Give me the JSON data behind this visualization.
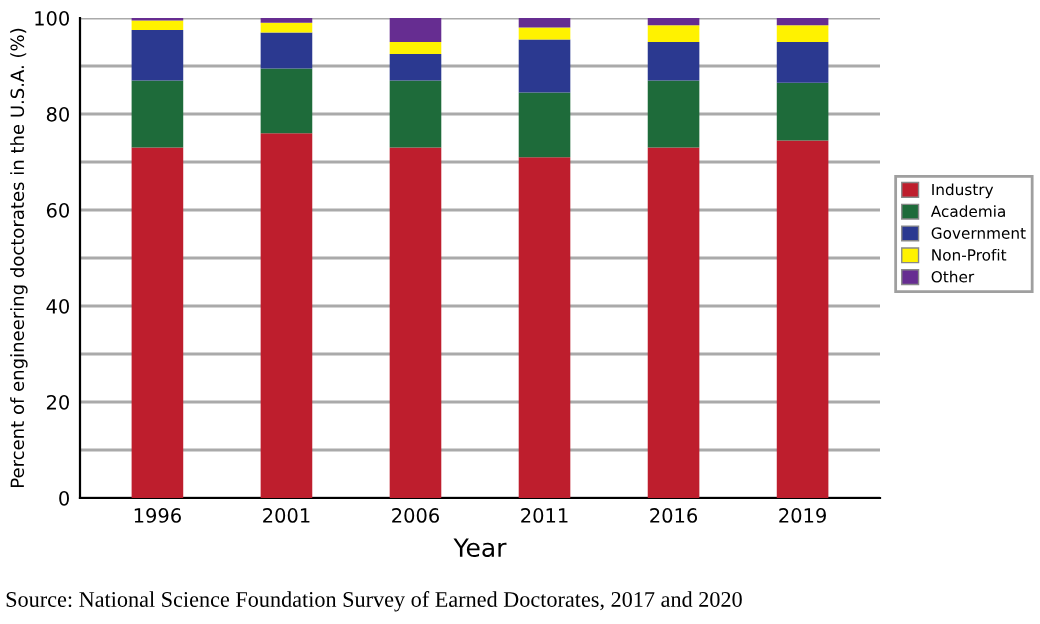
{
  "chart_data": {
    "type": "bar",
    "stacked": true,
    "xlabel": "Year",
    "ylabel": "Percent of engineering doctorates in the U.S.A. (%)",
    "categories": [
      "1996",
      "2001",
      "2006",
      "2011",
      "2016",
      "2019"
    ],
    "series": [
      {
        "name": "Industry",
        "color": "#be1e2d",
        "values": [
          73,
          76,
          73,
          71,
          73,
          74.5
        ]
      },
      {
        "name": "Academia",
        "color": "#1e6b3a",
        "values": [
          14,
          13.5,
          14,
          13.5,
          14,
          12
        ]
      },
      {
        "name": "Government",
        "color": "#2b3990",
        "values": [
          10.5,
          7.5,
          5.5,
          11,
          8,
          8.5
        ]
      },
      {
        "name": "Non-Profit",
        "color": "#fff200",
        "values": [
          2,
          2,
          2.5,
          2.5,
          3.5,
          3.5
        ]
      },
      {
        "name": "Other",
        "color": "#662d91",
        "values": [
          0.5,
          1,
          5,
          2,
          1.5,
          1.5
        ]
      }
    ],
    "ylim": [
      0,
      100
    ],
    "yticks": [
      0,
      {
        "value": 10,
        "label": null
      },
      20,
      {
        "value": 30,
        "label": null
      },
      40,
      {
        "value": 50,
        "label": null
      },
      60,
      {
        "value": 70,
        "label": null
      },
      80,
      {
        "value": 90,
        "label": null
      },
      100
    ],
    "grid": "y",
    "legend": "right",
    "annotations": [
      "Source: National Science Foundation Survey of Earned Doctorates, 2017 and 2020"
    ]
  }
}
